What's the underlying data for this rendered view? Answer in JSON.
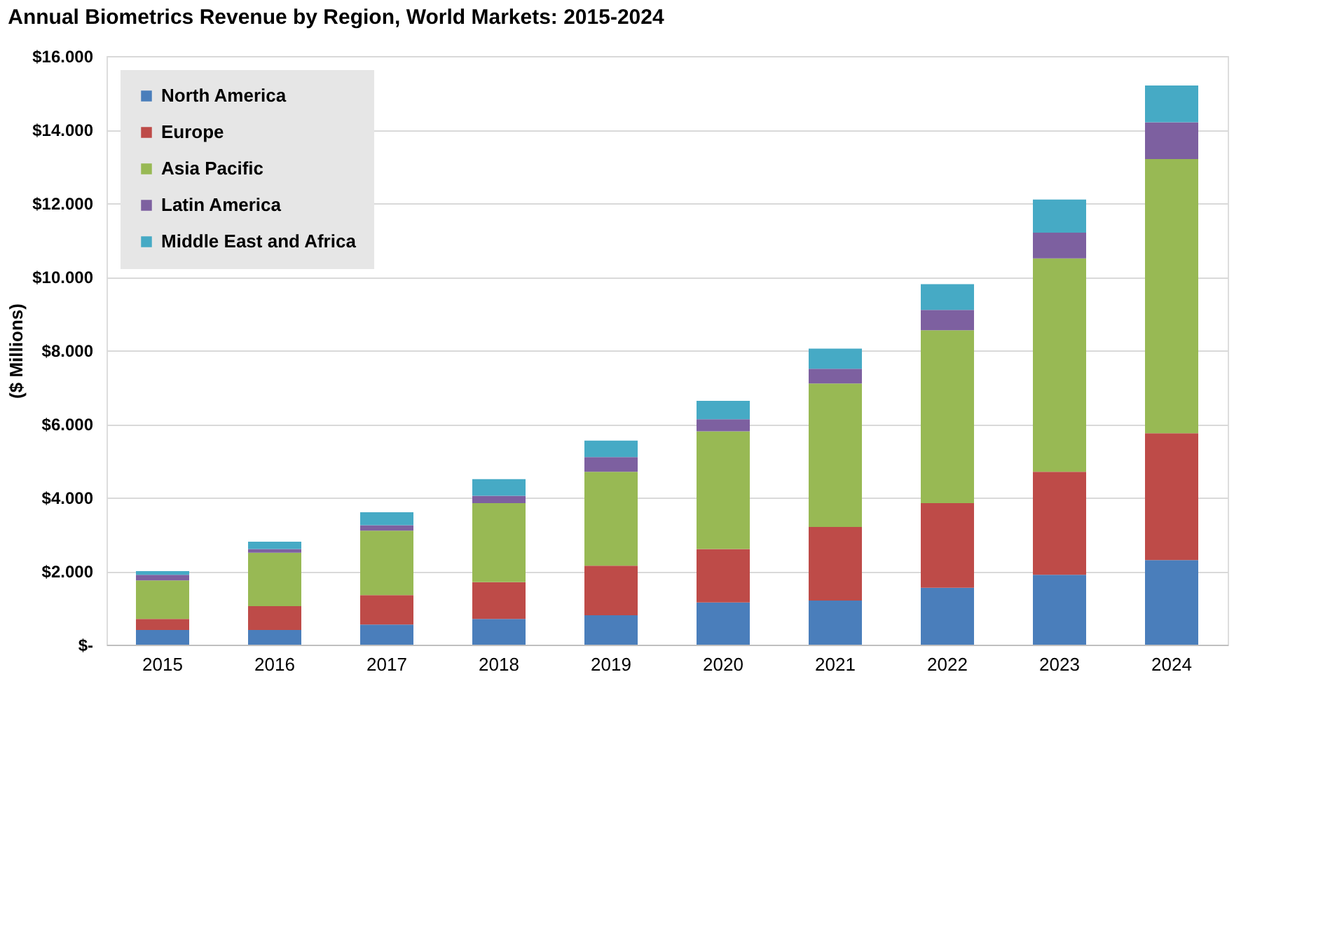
{
  "chart_data": {
    "type": "bar",
    "title": "Annual Biometrics Revenue by Region, World Markets: 2015-2024",
    "ylabel": "($ Millions)",
    "categories": [
      "2015",
      "2016",
      "2017",
      "2018",
      "2019",
      "2020",
      "2021",
      "2022",
      "2023",
      "2024"
    ],
    "stacked": true,
    "series": [
      {
        "name": "North America",
        "color": "#4a7ebb",
        "values": [
          400,
          400,
          550,
          700,
          800,
          1150,
          1200,
          1550,
          1900,
          2300
        ]
      },
      {
        "name": "Europe",
        "color": "#be4b48",
        "values": [
          300,
          650,
          800,
          1000,
          1350,
          1450,
          2000,
          2300,
          2800,
          3450
        ]
      },
      {
        "name": "Asia Pacific",
        "color": "#98b954",
        "values": [
          1050,
          1450,
          1750,
          2150,
          2550,
          3200,
          3900,
          4700,
          5800,
          7450
        ]
      },
      {
        "name": "Latin America",
        "color": "#7d60a0",
        "values": [
          150,
          100,
          150,
          200,
          400,
          330,
          400,
          550,
          700,
          1000
        ]
      },
      {
        "name": "Middle East and Africa",
        "color": "#46aac5",
        "values": [
          100,
          200,
          350,
          450,
          450,
          500,
          550,
          700,
          900,
          1000
        ]
      }
    ],
    "ylim": [
      0,
      16000
    ],
    "yticks": [
      {
        "value": 0,
        "label": "$-"
      },
      {
        "value": 2000,
        "label": "$2.000"
      },
      {
        "value": 4000,
        "label": "$4.000"
      },
      {
        "value": 6000,
        "label": "$6.000"
      },
      {
        "value": 8000,
        "label": "$8.000"
      },
      {
        "value": 10000,
        "label": "$10.000"
      },
      {
        "value": 12000,
        "label": "$12.000"
      },
      {
        "value": 14000,
        "label": "$14.000"
      },
      {
        "value": 16000,
        "label": "$16.000"
      }
    ],
    "grid": "y",
    "legend": "top left"
  }
}
